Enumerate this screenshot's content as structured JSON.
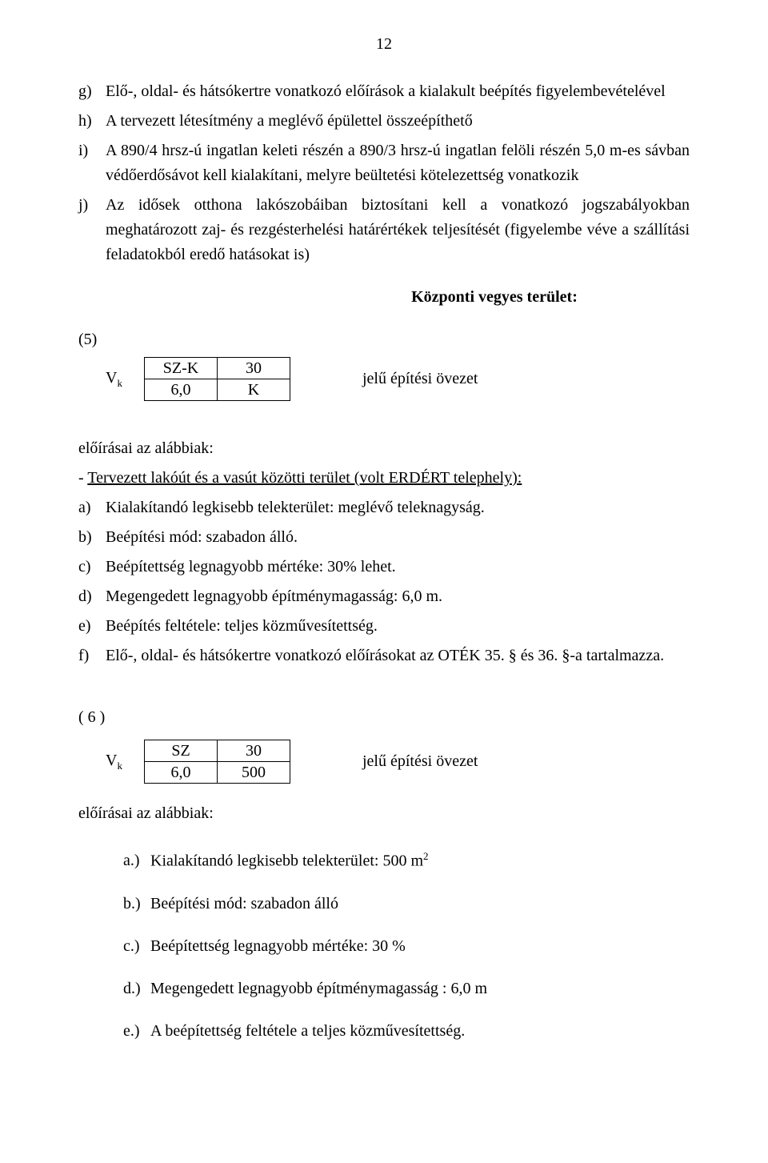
{
  "page_number": "12",
  "list1": {
    "g": {
      "marker": "g)",
      "text": "Elő-, oldal- és hátsókertre vonatkozó előírások a kialakult beépítés figyelembevételével"
    },
    "h": {
      "marker": "h)",
      "text": "A tervezett létesítmény a meglévő épülettel összeépíthető"
    },
    "i": {
      "marker": "i)",
      "text": "A 890/4 hrsz-ú ingatlan keleti részén a 890/3 hrsz-ú ingatlan felöli részén 5,0 m-es sávban védőerdősávot kell kialakítani, melyre beültetési kötelezettség vonatkozik"
    },
    "j": {
      "marker": "j)",
      "text": "Az idősek otthona lakószobáiban biztosítani kell a vonatkozó jogszabályokban meghatározott zaj- és rezgésterhelési határértékek teljesítését (figyelembe véve a szállítási feladatokból eredő hatásokat is)"
    }
  },
  "section5": {
    "title": "Központi vegyes terület:",
    "num": "(5)",
    "vk_html": "V<sub>k</sub>",
    "table": {
      "a": "SZ-K",
      "b": "30",
      "c": "6,0",
      "d": "K"
    },
    "suffix": "jelű építési övezet",
    "intro": "előírásai az alábbiak:",
    "dash": "- ",
    "dash_underline": "Tervezett lakóút és a vasút közötti terület (volt ERDÉRT telephely):",
    "a": {
      "marker": "a)",
      "text": "Kialakítandó legkisebb telekterület: meglévő teleknagyság."
    },
    "b": {
      "marker": "b)",
      "text": "Beépítési mód: szabadon álló."
    },
    "c": {
      "marker": "c)",
      "text": "Beépítettség legnagyobb mértéke: 30% lehet."
    },
    "d": {
      "marker": "d)",
      "text": "Megengedett legnagyobb építménymagasság: 6,0 m."
    },
    "e": {
      "marker": "e)",
      "text": "Beépítés feltétele: teljes közművesítettség."
    },
    "f": {
      "marker": "f)",
      "text": "Elő-, oldal- és hátsókertre vonatkozó előírásokat az OTÉK 35. § és 36. §-a tartalmazza."
    }
  },
  "section6": {
    "num": "( 6 )",
    "vk_html": "V<sub>k</sub>",
    "table": {
      "a": "SZ",
      "b": "30",
      "c": "6,0",
      "d": "500"
    },
    "suffix": "jelű építési övezet",
    "intro": "előírásai az alábbiak:",
    "a": {
      "marker": "a.)",
      "text_html": "Kialakítandó legkisebb telekterület: 500 m<sup>2</sup>"
    },
    "b": {
      "marker": "b.)",
      "text": "Beépítési mód: szabadon álló"
    },
    "c": {
      "marker": "c.)",
      "text": "Beépítettség legnagyobb mértéke: 30 %"
    },
    "d": {
      "marker": "d.)",
      "text": "Megengedett legnagyobb építménymagasság : 6,0 m"
    },
    "e": {
      "marker": "e.)",
      "text": "A beépítettség feltétele a teljes közművesítettség."
    }
  }
}
